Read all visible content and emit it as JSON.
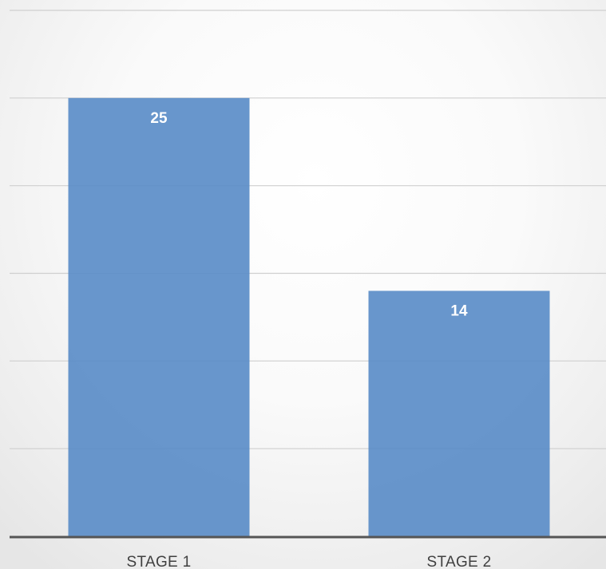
{
  "chart_data": {
    "type": "bar",
    "title": "",
    "xlabel": "",
    "ylabel": "",
    "categories": [
      "STAGE 1",
      "STAGE 2"
    ],
    "values": [
      25,
      14
    ],
    "data_labels": [
      "25",
      "14"
    ],
    "ylim": [
      0,
      30
    ],
    "y_grid_step": 5,
    "grid": true,
    "y_tick_labels_visible": false,
    "legend": "none",
    "colors": {
      "bar": "#5b8dc8",
      "data_label": "#ffffff",
      "tick_label": "#404040",
      "grid": "#cfcfcf",
      "baseline": "#555555"
    }
  }
}
